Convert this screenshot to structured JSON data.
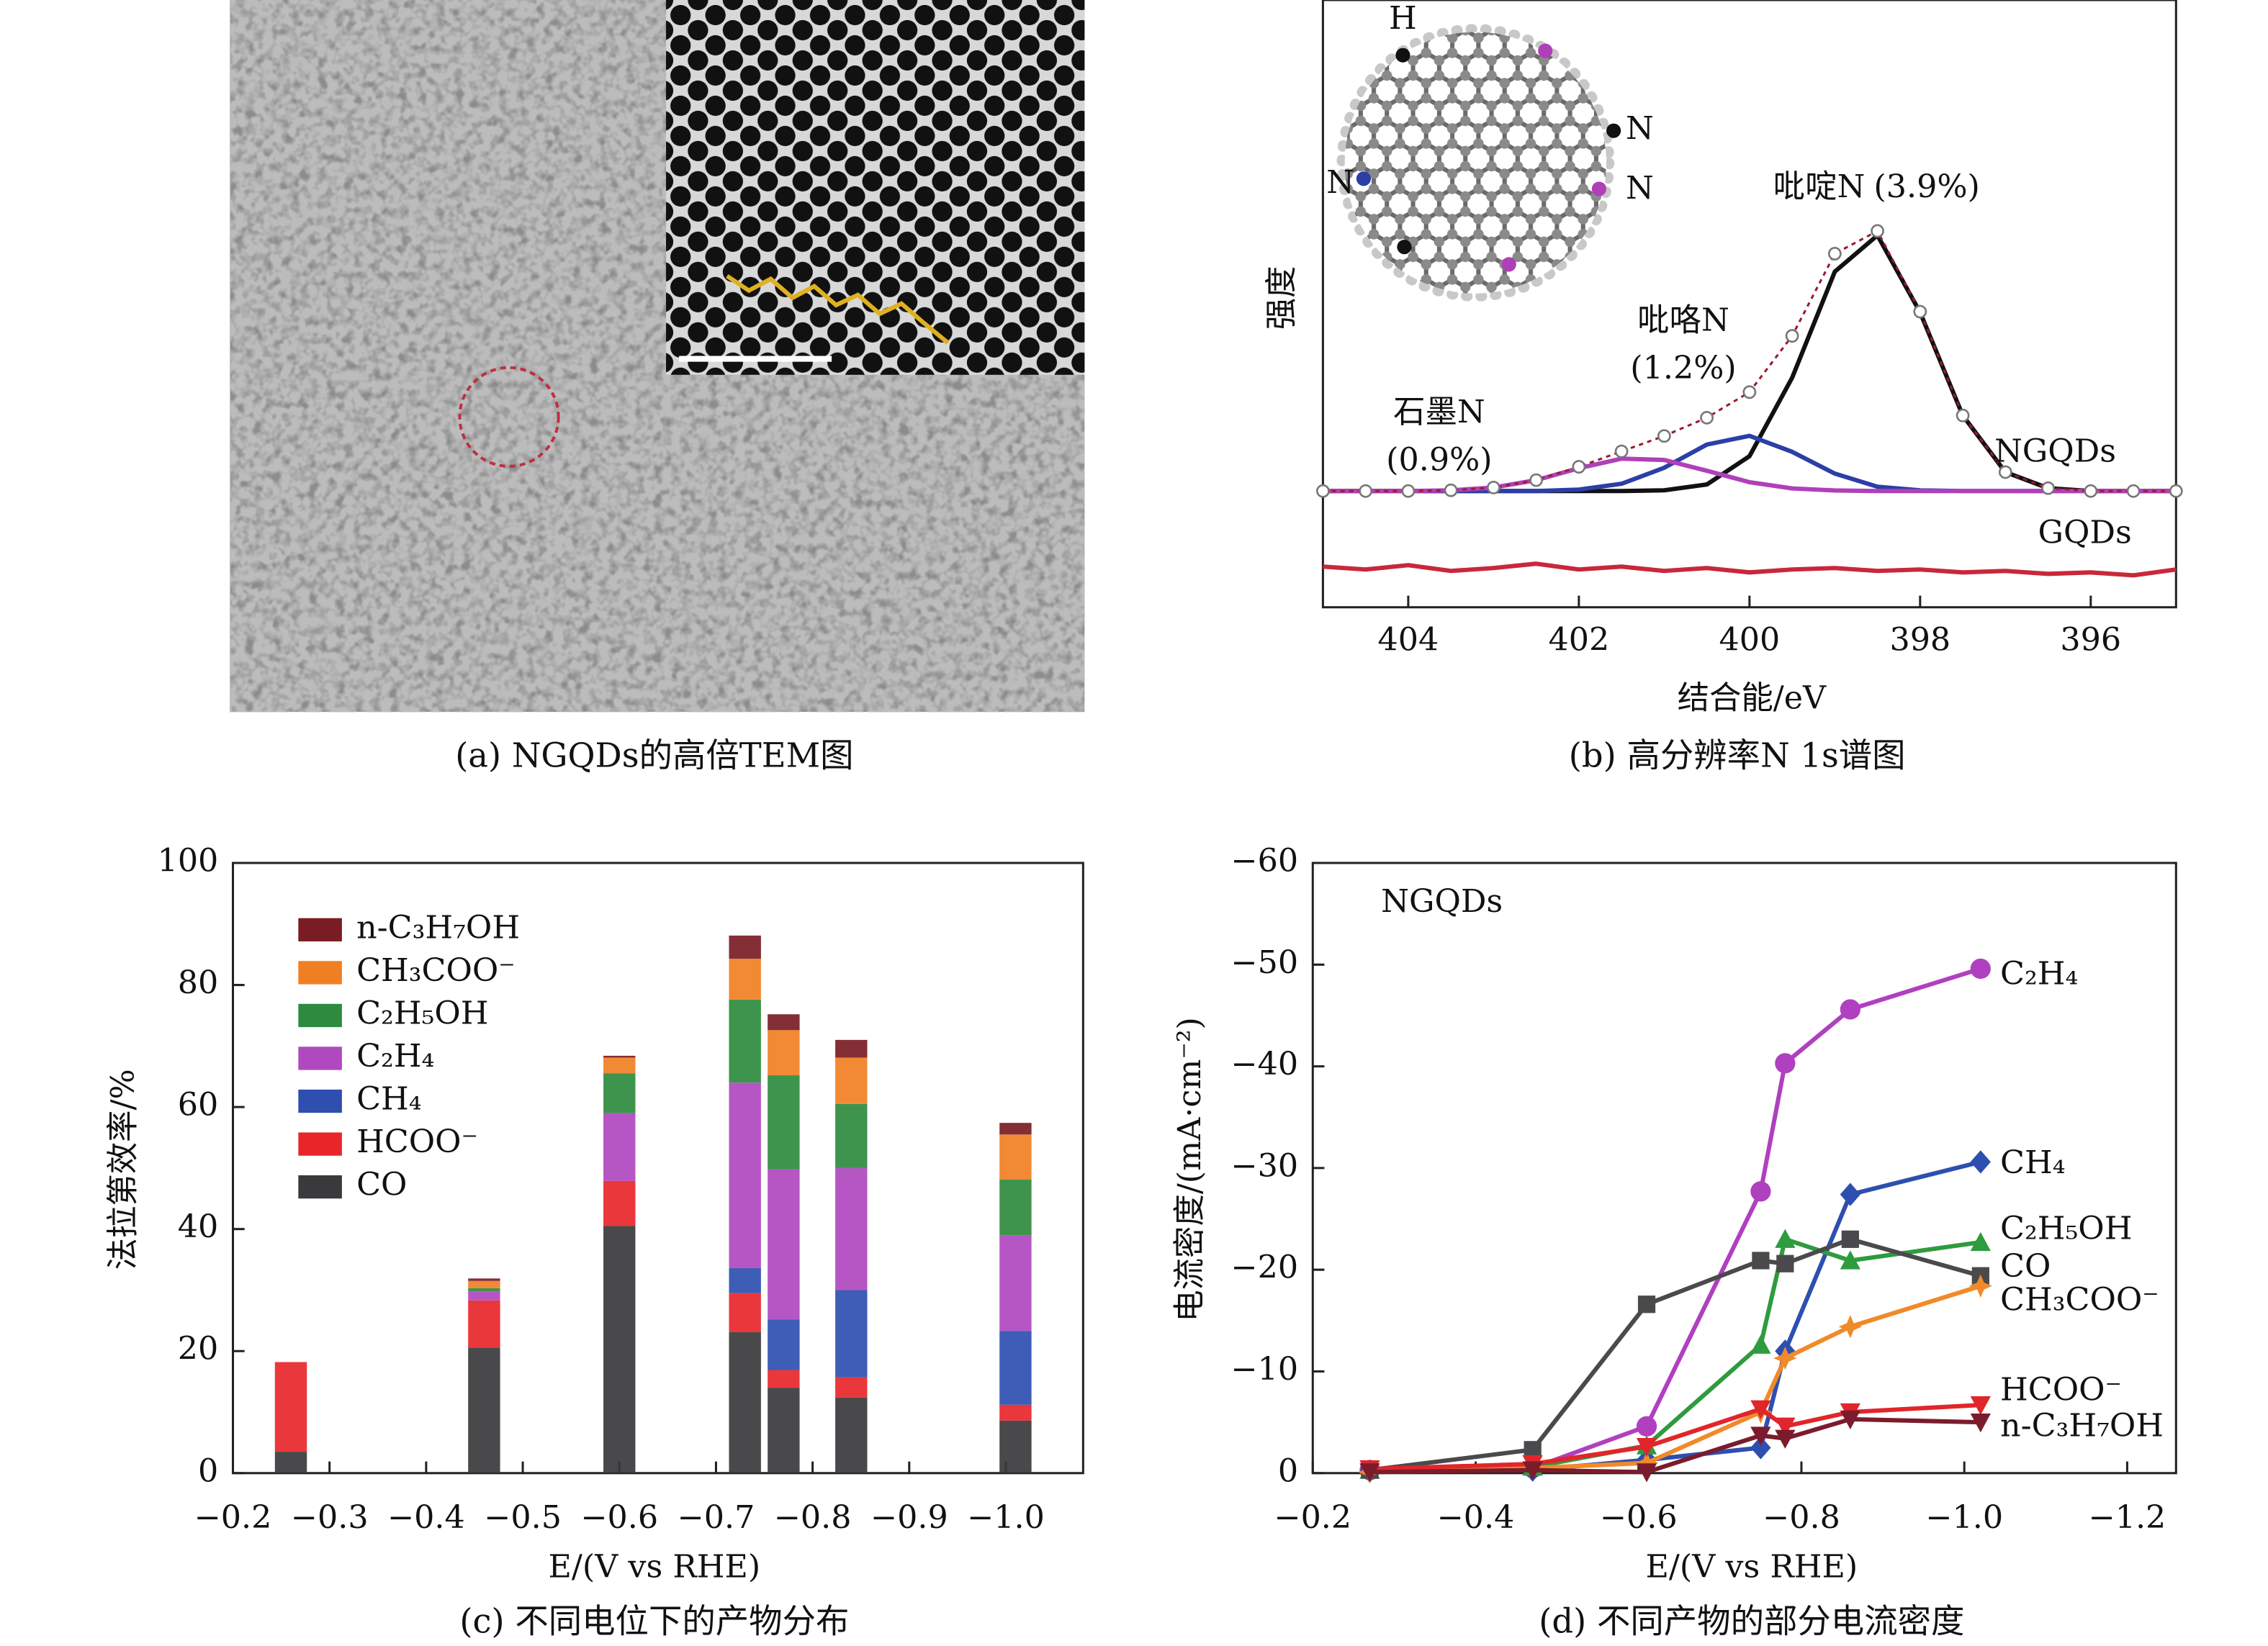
{
  "chart_data": [
    {
      "type": "image",
      "caption": "(a) NGQDs的高倍TEM图"
    },
    {
      "type": "line",
      "caption": "(b) 高分辨率N 1s谱图",
      "xlabel": "结合能/eV",
      "ylabel": "强度",
      "x": [
        405,
        404.5,
        404,
        403.5,
        403,
        402.5,
        402,
        401.5,
        401,
        400.5,
        400,
        399.5,
        399,
        398.5,
        398,
        397.5,
        397,
        396.5,
        396,
        395.5,
        395
      ],
      "xlim": [
        405,
        395
      ],
      "xticks": [
        404,
        402,
        400,
        398,
        396
      ],
      "ylim": [
        -80,
        338
      ],
      "molecule_labels": [
        "H",
        "N",
        "N",
        "N"
      ],
      "series": [
        {
          "name": "吡啶N",
          "share": "(3.9%)",
          "color": "#111111",
          "values": [
            0,
            0,
            0,
            0,
            0,
            0,
            0,
            0,
            0.5,
            4.5,
            24,
            78,
            151,
            176,
            123,
            52,
            13,
            2,
            0,
            0,
            0
          ]
        },
        {
          "name": "吡咯N",
          "share": "(1.2%)",
          "color": "#2b3fa6",
          "values": [
            0,
            0,
            0,
            0,
            0,
            0,
            1,
            5,
            16,
            32,
            38,
            27,
            12,
            3,
            0.5,
            0,
            0,
            0,
            0,
            0,
            0
          ]
        },
        {
          "name": "石墨N",
          "share": "(0.9%)",
          "color": "#b040b8",
          "values": [
            0,
            0,
            0,
            0.5,
            2.4,
            7.5,
            15.7,
            22.3,
            21.4,
            14,
            6.1,
            1.8,
            0.4,
            0,
            0,
            0,
            0,
            0,
            0,
            0,
            0
          ]
        },
        {
          "name": "NGQDs",
          "color": "#9a1c2c",
          "marker": "circle-open",
          "values": [
            0,
            0,
            0,
            0.5,
            2.4,
            7.5,
            16.7,
            27.3,
            37.9,
            50.5,
            68.1,
            106.8,
            163.4,
            179,
            123.5,
            52,
            13,
            2,
            0,
            0,
            0
          ]
        },
        {
          "name": "GQDs",
          "color": "#c8283a",
          "values": [
            -52,
            -54,
            -51,
            -55,
            -53,
            -50,
            -54,
            -52,
            -55,
            -53,
            -56,
            -54,
            -53,
            -55,
            -54,
            -56,
            -55,
            -57,
            -56,
            -58,
            -54
          ]
        }
      ]
    },
    {
      "type": "bar",
      "caption": "(c) 不同电位下的产物分布",
      "xlabel": "E/(V vs RHE)",
      "ylabel": "法拉第效率/%",
      "x": [
        -0.26,
        -0.46,
        -0.6,
        -0.73,
        -0.77,
        -0.84,
        -1.01
      ],
      "xlim": [
        -0.2,
        -1.08
      ],
      "xticks": [
        {
          "value": -0.2,
          "label": "−0.2"
        },
        {
          "value": -0.3,
          "label": "−0.3"
        },
        {
          "value": -0.4,
          "label": "−0.4"
        },
        {
          "value": -0.5,
          "label": "−0.5"
        },
        {
          "value": -0.6,
          "label": "−0.6"
        },
        {
          "value": -0.7,
          "label": "−0.7"
        },
        {
          "value": -0.8,
          "label": "−0.8"
        },
        {
          "value": -0.9,
          "label": "−0.9"
        },
        {
          "value": -1.0,
          "label": "−1.0"
        }
      ],
      "ylim": [
        0,
        100
      ],
      "yticks": [
        0,
        20,
        40,
        60,
        80,
        100
      ],
      "series": [
        {
          "name": "CO",
          "color": "#3a3a3c",
          "values": [
            3.5,
            20.5,
            40.5,
            23.1,
            14,
            12.4,
            8.6
          ]
        },
        {
          "name": "HCOO⁻",
          "color": "#e8262a",
          "values": [
            14.7,
            7.8,
            7.4,
            6.4,
            2.9,
            3.3,
            2.6
          ]
        },
        {
          "name": "CH₄",
          "color": "#2e4fb0",
          "values": [
            0,
            0,
            0,
            4.1,
            8.3,
            14.3,
            12.1
          ]
        },
        {
          "name": "C₂H₄",
          "color": "#b048c0",
          "values": [
            0,
            1.5,
            11.1,
            30.4,
            24.6,
            20,
            15.7
          ]
        },
        {
          "name": "C₂H₅OH",
          "color": "#2e8b3e",
          "values": [
            0,
            0.5,
            6.5,
            13.6,
            15.4,
            10.5,
            9.1
          ]
        },
        {
          "name": "CH₃COO⁻",
          "color": "#f07f24",
          "values": [
            0,
            1.2,
            2.6,
            6.7,
            7.4,
            7.6,
            7.4
          ]
        },
        {
          "name": "n-C₃H₇OH",
          "color": "#7a1c24",
          "values": [
            0,
            0.4,
            0.3,
            3.8,
            2.6,
            2.9,
            1.9
          ]
        }
      ]
    },
    {
      "type": "line",
      "caption": "(d) 不同产物的部分电流密度",
      "xlabel": "E/(V vs RHE)",
      "ylabel": "电流密度/(mA·cm⁻²)",
      "note": "NGQDs",
      "x": [
        -0.27,
        -0.47,
        -0.61,
        -0.75,
        -0.78,
        -0.86,
        -1.02
      ],
      "xlim": [
        -0.2,
        -1.26
      ],
      "xticks": [
        {
          "value": -0.2,
          "label": "−0.2"
        },
        {
          "value": -0.4,
          "label": "−0.4"
        },
        {
          "value": -0.6,
          "label": "−0.6"
        },
        {
          "value": -0.8,
          "label": "−0.8"
        },
        {
          "value": -1.0,
          "label": "−1.0"
        },
        {
          "value": -1.2,
          "label": "−1.2"
        }
      ],
      "ylim": [
        0,
        -60
      ],
      "yticks": [
        0,
        {
          "value": -10,
          "label": "−10"
        },
        {
          "value": -20,
          "label": "−20"
        },
        {
          "value": -30,
          "label": "−30"
        },
        {
          "value": -40,
          "label": "−40"
        },
        {
          "value": -50,
          "label": "−50"
        },
        {
          "value": -60,
          "label": "−60"
        }
      ],
      "series": [
        {
          "name": "C₂H₄",
          "color": "#b040c0",
          "marker": "circle",
          "values": [
            -0.3,
            -0.5,
            -4.6,
            -27.7,
            -40.3,
            -45.6,
            -49.6
          ]
        },
        {
          "name": "CH₄",
          "color": "#2e4fb0",
          "marker": "diamond",
          "values": [
            -0.2,
            -0.3,
            -1.3,
            -2.5,
            -12,
            -27.4,
            -30.6
          ]
        },
        {
          "name": "C₂H₅OH",
          "color": "#2e9b3e",
          "marker": "triangle",
          "values": [
            -0.3,
            -0.6,
            -2.7,
            -12.6,
            -23,
            -20.9,
            -22.7
          ]
        },
        {
          "name": "CO",
          "color": "#4a4a4c",
          "marker": "square",
          "values": [
            -0.3,
            -2.3,
            -16.6,
            -20.9,
            -20.6,
            -23,
            -19.4
          ]
        },
        {
          "name": "CH₃COO⁻",
          "color": "#f08a2a",
          "marker": "star",
          "values": [
            -0.1,
            -0.5,
            -1,
            -6,
            -11.3,
            -14.4,
            -18.4
          ]
        },
        {
          "name": "HCOO⁻",
          "color": "#e0262a",
          "marker": "triangle-down",
          "values": [
            -0.4,
            -0.9,
            -2.6,
            -6.3,
            -4.6,
            -6,
            -6.7
          ]
        },
        {
          "name": "n-C₃H₇OH",
          "color": "#7a1c2c",
          "marker": "triangle-down",
          "values": [
            -0.1,
            -0.3,
            -0.1,
            -3.7,
            -3.4,
            -5.3,
            -5
          ]
        }
      ]
    }
  ]
}
